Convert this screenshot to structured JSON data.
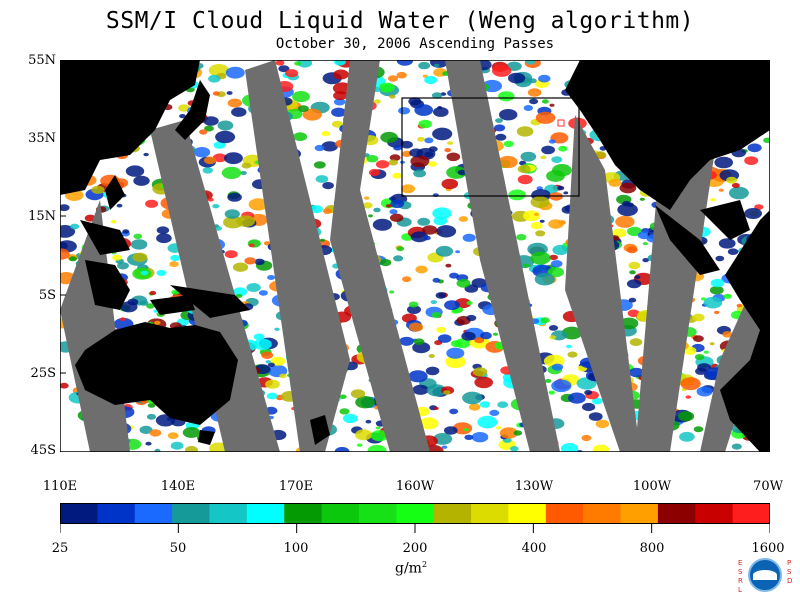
{
  "title": "SSM/I Cloud Liquid Water (Weng algorithm)",
  "subtitle": "October 30, 2006  Ascending Passes",
  "lat_labels": [
    "55N",
    "35N",
    "15N",
    "5S",
    "25S",
    "45S"
  ],
  "lon_labels": [
    "110E",
    "140E",
    "170E",
    "160W",
    "130W",
    "100W",
    "70W"
  ],
  "colorbar": {
    "colors": [
      "#001a80",
      "#0033c8",
      "#1a6aff",
      "#159999",
      "#14c6c6",
      "#00ffff",
      "#049a04",
      "#0cc80c",
      "#16e016",
      "#14ff14",
      "#b4b400",
      "#dcdc00",
      "#ffff00",
      "#ff5a00",
      "#ff7b00",
      "#ffa000",
      "#8c0000",
      "#c80000",
      "#ff1e1e"
    ],
    "tick_labels": [
      "25",
      "50",
      "100",
      "200",
      "400",
      "800",
      "1600"
    ],
    "units": "g/m",
    "units_sup": "2"
  },
  "map": {
    "lat_range": [
      -45,
      55
    ],
    "lon_range": [
      "110E",
      "70W"
    ],
    "inset_box_labeled": false
  },
  "logo": {
    "left_letters": [
      "E",
      "S",
      "R",
      "L"
    ],
    "right_letters": [
      "P",
      "S",
      "D"
    ],
    "badge": "NOAA"
  }
}
